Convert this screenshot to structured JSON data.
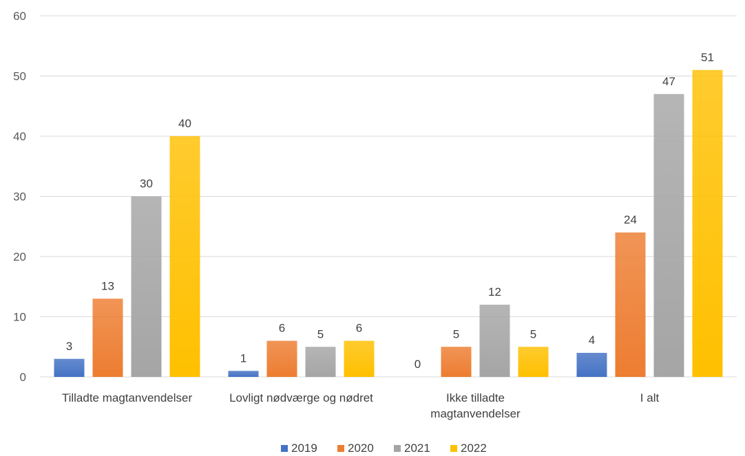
{
  "chart_data": {
    "type": "bar",
    "categories": [
      [
        "Tilladte magtanvendelser"
      ],
      [
        "Lovligt nødværge og nødret"
      ],
      [
        "Ikke tilladte",
        "magtanvendelser"
      ],
      [
        "I alt"
      ]
    ],
    "series": [
      {
        "name": "2019",
        "values": [
          3,
          1,
          0,
          4
        ],
        "color": "#4472c4"
      },
      {
        "name": "2020",
        "values": [
          13,
          6,
          5,
          24
        ],
        "color": "#ed7d31"
      },
      {
        "name": "2021",
        "values": [
          30,
          5,
          12,
          47
        ],
        "color": "#a5a5a5"
      },
      {
        "name": "2022",
        "values": [
          40,
          6,
          5,
          51
        ],
        "color": "#ffc000"
      }
    ],
    "ylim": [
      0,
      60
    ],
    "yticks": [
      "0",
      "10",
      "20",
      "30",
      "40",
      "50",
      "60"
    ],
    "grid": true,
    "legend": "bottom",
    "data_labels": true
  }
}
